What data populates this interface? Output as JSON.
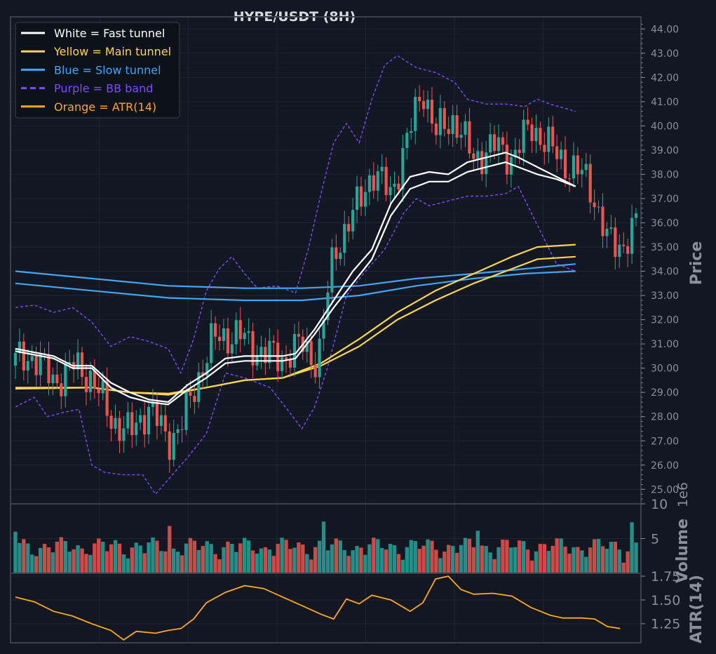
{
  "title": "HYPE/USDT (8H)",
  "colors": {
    "background": "#131722",
    "grid": "#1f2533",
    "frame": "#3a3f4b",
    "tick_text": "#8a8f99",
    "up": "#26a69a",
    "down": "#ef5350",
    "fast": "#ffffff",
    "main": "#ffd54f",
    "slow": "#42a5f5",
    "bb": "#7c4dff",
    "atr": "#ffa726",
    "volume_up": "#26a69a",
    "volume_down": "#ef5350"
  },
  "legend": [
    {
      "label": "White = Fast tunnel",
      "color": "#ffffff",
      "dash": false
    },
    {
      "label": "Yellow = Main tunnel",
      "color": "#ffd54f",
      "dash": false
    },
    {
      "label": "Blue = Slow tunnel",
      "color": "#42a5f5",
      "dash": false
    },
    {
      "label": "Purple = BB band",
      "color": "#7c4dff",
      "dash": true
    },
    {
      "label": "Orange = ATR(14)",
      "color": "#ffa726",
      "dash": false
    }
  ],
  "chart_data": [
    {
      "type": "candlestick",
      "ylabel": "Price",
      "ylim": [
        24.4,
        44.5
      ],
      "yticks": [
        "25.00",
        "26.00",
        "27.00",
        "28.00",
        "29.00",
        "30.00",
        "31.00",
        "32.00",
        "33.00",
        "34.00",
        "35.00",
        "36.00",
        "37.00",
        "38.00",
        "39.00",
        "40.00",
        "41.00",
        "42.00",
        "43.00",
        "44.00"
      ],
      "n_candles": 150,
      "close_anchors": [
        [
          0,
          30.3
        ],
        [
          6,
          30.5
        ],
        [
          12,
          29.4
        ],
        [
          18,
          30.1
        ],
        [
          24,
          29.6
        ],
        [
          30,
          27.9
        ],
        [
          36,
          27.3
        ],
        [
          42,
          28.4
        ],
        [
          48,
          27.0
        ],
        [
          52,
          27.6
        ],
        [
          58,
          29.8
        ],
        [
          62,
          31.2
        ],
        [
          70,
          31.4
        ],
        [
          76,
          30.7
        ],
        [
          84,
          30.4
        ],
        [
          90,
          31.0
        ],
        [
          95,
          30.2
        ],
        [
          100,
          34.8
        ],
        [
          106,
          36.3
        ],
        [
          112,
          38.1
        ],
        [
          118,
          37.2
        ],
        [
          124,
          39.8
        ],
        [
          128,
          41.6
        ],
        [
          132,
          39.7
        ],
        [
          138,
          40.3
        ],
        [
          144,
          38.6
        ],
        [
          150,
          39.2
        ],
        [
          156,
          38.7
        ],
        [
          162,
          40.0
        ],
        [
          168,
          39.1
        ],
        [
          174,
          38.3
        ],
        [
          180,
          37.8
        ],
        [
          186,
          35.2
        ],
        [
          191,
          35.1
        ],
        [
          195,
          35.9
        ]
      ],
      "x_range": [
        0,
        195
      ],
      "overlays": {
        "fast_upper": [
          [
            0,
            30.8
          ],
          [
            12,
            30.5
          ],
          [
            18,
            30.1
          ],
          [
            24,
            30.1
          ],
          [
            30,
            29.4
          ],
          [
            36,
            29.0
          ],
          [
            42,
            28.7
          ],
          [
            48,
            28.6
          ],
          [
            54,
            29.3
          ],
          [
            60,
            29.8
          ],
          [
            66,
            30.4
          ],
          [
            72,
            30.5
          ],
          [
            78,
            30.5
          ],
          [
            84,
            30.5
          ],
          [
            88,
            30.6
          ],
          [
            94,
            31.6
          ],
          [
            100,
            32.8
          ],
          [
            106,
            34.0
          ],
          [
            112,
            34.9
          ],
          [
            118,
            36.8
          ],
          [
            124,
            37.9
          ],
          [
            130,
            38.1
          ],
          [
            136,
            38.0
          ],
          [
            142,
            38.5
          ],
          [
            148,
            38.7
          ],
          [
            154,
            38.9
          ],
          [
            158,
            38.7
          ],
          [
            164,
            38.3
          ],
          [
            170,
            37.9
          ],
          [
            176,
            37.5
          ]
        ],
        "fast_lower": [
          [
            0,
            30.7
          ],
          [
            12,
            30.4
          ],
          [
            18,
            30.0
          ],
          [
            24,
            30.0
          ],
          [
            30,
            29.2
          ],
          [
            36,
            28.8
          ],
          [
            42,
            28.6
          ],
          [
            48,
            28.5
          ],
          [
            54,
            29.1
          ],
          [
            60,
            29.6
          ],
          [
            66,
            30.2
          ],
          [
            72,
            30.3
          ],
          [
            78,
            30.3
          ],
          [
            84,
            30.3
          ],
          [
            88,
            30.4
          ],
          [
            94,
            31.4
          ],
          [
            100,
            32.5
          ],
          [
            106,
            33.5
          ],
          [
            112,
            34.5
          ],
          [
            118,
            36.3
          ],
          [
            124,
            37.4
          ],
          [
            130,
            37.7
          ],
          [
            136,
            37.7
          ],
          [
            142,
            38.1
          ],
          [
            148,
            38.3
          ],
          [
            154,
            38.5
          ],
          [
            158,
            38.3
          ],
          [
            164,
            38.0
          ],
          [
            170,
            37.8
          ],
          [
            176,
            37.5
          ]
        ],
        "main_upper": [
          [
            0,
            29.2
          ],
          [
            24,
            29.2
          ],
          [
            36,
            29.0
          ],
          [
            48,
            28.9
          ],
          [
            60,
            29.2
          ],
          [
            72,
            29.5
          ],
          [
            84,
            29.6
          ],
          [
            96,
            30.2
          ],
          [
            108,
            31.2
          ],
          [
            120,
            32.3
          ],
          [
            132,
            33.2
          ],
          [
            144,
            33.9
          ],
          [
            156,
            34.6
          ],
          [
            164,
            35.0
          ],
          [
            176,
            35.1
          ]
        ],
        "main_lower": [
          [
            0,
            29.15
          ],
          [
            24,
            29.2
          ],
          [
            36,
            29.0
          ],
          [
            48,
            28.95
          ],
          [
            60,
            29.2
          ],
          [
            72,
            29.5
          ],
          [
            84,
            29.6
          ],
          [
            96,
            30.1
          ],
          [
            108,
            30.9
          ],
          [
            120,
            32.0
          ],
          [
            132,
            32.8
          ],
          [
            144,
            33.5
          ],
          [
            156,
            34.1
          ],
          [
            164,
            34.5
          ],
          [
            176,
            34.6
          ]
        ],
        "slow_upper": [
          [
            0,
            34.0
          ],
          [
            24,
            33.7
          ],
          [
            48,
            33.4
          ],
          [
            72,
            33.3
          ],
          [
            90,
            33.3
          ],
          [
            108,
            33.4
          ],
          [
            126,
            33.7
          ],
          [
            144,
            33.9
          ],
          [
            160,
            34.1
          ],
          [
            176,
            34.3
          ]
        ],
        "slow_lower": [
          [
            0,
            33.5
          ],
          [
            24,
            33.2
          ],
          [
            48,
            32.9
          ],
          [
            72,
            32.8
          ],
          [
            90,
            32.8
          ],
          [
            108,
            33.0
          ],
          [
            126,
            33.4
          ],
          [
            144,
            33.7
          ],
          [
            160,
            33.9
          ],
          [
            176,
            34.0
          ]
        ],
        "bb_upper": [
          [
            0,
            32.5
          ],
          [
            6,
            32.6
          ],
          [
            12,
            32.3
          ],
          [
            18,
            32.5
          ],
          [
            24,
            31.9
          ],
          [
            30,
            30.9
          ],
          [
            36,
            31.3
          ],
          [
            42,
            31.1
          ],
          [
            48,
            30.8
          ],
          [
            52,
            29.8
          ],
          [
            56,
            31.2
          ],
          [
            60,
            33.2
          ],
          [
            64,
            34.1
          ],
          [
            68,
            34.6
          ],
          [
            72,
            33.9
          ],
          [
            76,
            33.3
          ],
          [
            82,
            33.4
          ],
          [
            88,
            33.1
          ],
          [
            92,
            34.9
          ],
          [
            96,
            37.2
          ],
          [
            100,
            39.3
          ],
          [
            104,
            40.1
          ],
          [
            108,
            39.3
          ],
          [
            112,
            41.1
          ],
          [
            116,
            42.5
          ],
          [
            120,
            42.9
          ],
          [
            126,
            42.4
          ],
          [
            132,
            42.2
          ],
          [
            138,
            41.8
          ],
          [
            142,
            41.1
          ],
          [
            148,
            40.9
          ],
          [
            154,
            40.9
          ],
          [
            160,
            40.8
          ],
          [
            164,
            41.1
          ],
          [
            168,
            40.9
          ],
          [
            176,
            40.6
          ]
        ],
        "bb_lower": [
          [
            0,
            28.4
          ],
          [
            6,
            28.8
          ],
          [
            10,
            28.0
          ],
          [
            16,
            28.2
          ],
          [
            20,
            28.3
          ],
          [
            24,
            26.0
          ],
          [
            28,
            25.7
          ],
          [
            34,
            25.6
          ],
          [
            40,
            25.6
          ],
          [
            44,
            24.8
          ],
          [
            48,
            25.4
          ],
          [
            54,
            26.3
          ],
          [
            60,
            27.3
          ],
          [
            66,
            29.8
          ],
          [
            72,
            29.6
          ],
          [
            80,
            29.2
          ],
          [
            86,
            28.2
          ],
          [
            90,
            27.5
          ],
          [
            94,
            28.4
          ],
          [
            98,
            30.0
          ],
          [
            104,
            33.0
          ],
          [
            110,
            34.0
          ],
          [
            116,
            34.9
          ],
          [
            122,
            36.4
          ],
          [
            126,
            37.0
          ],
          [
            130,
            36.7
          ],
          [
            136,
            36.9
          ],
          [
            142,
            37.1
          ],
          [
            148,
            37.1
          ],
          [
            154,
            37.2
          ],
          [
            158,
            37.5
          ],
          [
            164,
            35.9
          ],
          [
            170,
            34.3
          ],
          [
            176,
            34.0
          ]
        ]
      }
    },
    {
      "type": "bar",
      "ylabel": "Volume",
      "scale_label": "1e6",
      "ylim": [
        0,
        10
      ],
      "yticks": [
        "5",
        "10"
      ]
    },
    {
      "type": "line",
      "ylabel": "ATR(14)",
      "ylim": [
        1.05,
        1.78
      ],
      "yticks": [
        "1.25",
        "1.50",
        "1.75"
      ],
      "points": [
        [
          0,
          1.53
        ],
        [
          6,
          1.48
        ],
        [
          12,
          1.38
        ],
        [
          18,
          1.33
        ],
        [
          24,
          1.25
        ],
        [
          30,
          1.18
        ],
        [
          34,
          1.08
        ],
        [
          38,
          1.17
        ],
        [
          44,
          1.15
        ],
        [
          48,
          1.18
        ],
        [
          52,
          1.2
        ],
        [
          56,
          1.3
        ],
        [
          60,
          1.47
        ],
        [
          66,
          1.58
        ],
        [
          72,
          1.65
        ],
        [
          78,
          1.62
        ],
        [
          84,
          1.53
        ],
        [
          90,
          1.44
        ],
        [
          96,
          1.35
        ],
        [
          100,
          1.3
        ],
        [
          104,
          1.51
        ],
        [
          108,
          1.46
        ],
        [
          112,
          1.55
        ],
        [
          118,
          1.5
        ],
        [
          124,
          1.38
        ],
        [
          128,
          1.47
        ],
        [
          132,
          1.72
        ],
        [
          136,
          1.75
        ],
        [
          140,
          1.61
        ],
        [
          144,
          1.56
        ],
        [
          150,
          1.57
        ],
        [
          156,
          1.54
        ],
        [
          162,
          1.42
        ],
        [
          168,
          1.34
        ],
        [
          172,
          1.31
        ],
        [
          178,
          1.31
        ],
        [
          182,
          1.3
        ],
        [
          186,
          1.22
        ],
        [
          190,
          1.2
        ]
      ]
    }
  ]
}
